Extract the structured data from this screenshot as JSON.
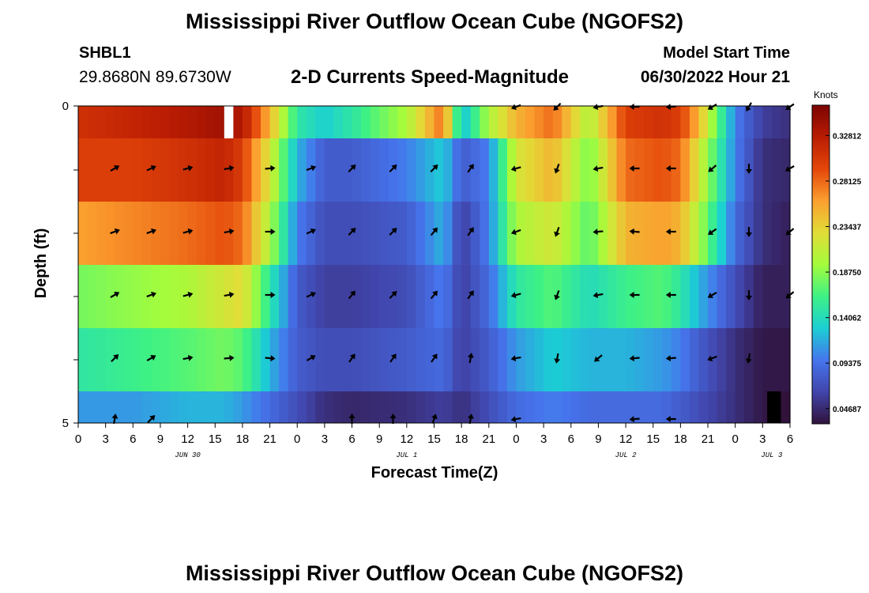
{
  "header": {
    "title": "Mississippi River Outflow Ocean Cube (NGOFS2)",
    "station_name": "SHBL1",
    "station_coords": "29.8680N  89.6730W",
    "plot_title": "2-D Currents Speed-Magnitude",
    "model_start_label": "Model Start Time",
    "model_start_value": "06/30/2022 Hour 21"
  },
  "footer": {
    "title": "Mississippi River Outflow Ocean Cube (NGOFS2)"
  },
  "chart_data": {
    "type": "heatmap",
    "title": "2-D Currents Speed-Magnitude",
    "xlabel": "Forecast Time(Z)",
    "ylabel": "Depth (ft)",
    "x_tick_labels": [
      "0",
      "3",
      "6",
      "9",
      "12",
      "15",
      "18",
      "21",
      "0",
      "3",
      "6",
      "9",
      "12",
      "15",
      "18",
      "21",
      "0",
      "3",
      "6",
      "9",
      "12",
      "15",
      "18",
      "21",
      "0",
      "3",
      "6"
    ],
    "x_range_hours": [
      0,
      78
    ],
    "date_labels": [
      {
        "label": "JUN 30",
        "hour": 12
      },
      {
        "label": "JUL 1",
        "hour": 36
      },
      {
        "label": "JUL 2",
        "hour": 60
      },
      {
        "label": "JUL 3",
        "hour": 76
      }
    ],
    "y_tick_labels": [
      "0",
      "5"
    ],
    "y_range": [
      0,
      5
    ],
    "layers": 6,
    "colorbar": {
      "unit": "Knots",
      "min": 0.03125,
      "max": 0.359375,
      "tick_labels": [
        "0.32812",
        "0.28125",
        "0.23437",
        "0.18750",
        "0.14062",
        "0.09375",
        "0.04687"
      ],
      "tick_values": [
        0.328125,
        0.28125,
        0.234375,
        0.1875,
        0.140625,
        0.09375,
        0.046875
      ]
    },
    "speed_keypoints_hours": [
      0,
      6,
      12,
      16,
      18,
      21,
      24,
      27,
      30,
      36,
      40,
      42,
      45,
      48,
      52,
      56,
      60,
      64,
      66,
      68,
      72,
      75,
      78
    ],
    "layer_speed_profiles": [
      [
        0.31,
        0.32,
        0.33,
        0.34,
        0.33,
        0.25,
        0.15,
        0.13,
        0.15,
        0.2,
        0.28,
        0.12,
        0.2,
        0.25,
        0.28,
        0.2,
        0.3,
        0.31,
        0.3,
        0.25,
        0.1,
        0.06,
        0.05
      ],
      [
        0.3,
        0.3,
        0.31,
        0.32,
        0.3,
        0.22,
        0.12,
        0.08,
        0.08,
        0.1,
        0.13,
        0.08,
        0.1,
        0.22,
        0.25,
        0.18,
        0.28,
        0.29,
        0.28,
        0.22,
        0.1,
        0.05,
        0.045
      ],
      [
        0.26,
        0.27,
        0.28,
        0.29,
        0.28,
        0.2,
        0.1,
        0.07,
        0.07,
        0.08,
        0.12,
        0.06,
        0.1,
        0.2,
        0.22,
        0.17,
        0.25,
        0.26,
        0.25,
        0.2,
        0.09,
        0.05,
        0.04
      ],
      [
        0.18,
        0.19,
        0.2,
        0.22,
        0.23,
        0.15,
        0.08,
        0.06,
        0.06,
        0.07,
        0.1,
        0.06,
        0.09,
        0.15,
        0.17,
        0.14,
        0.16,
        0.17,
        0.15,
        0.12,
        0.07,
        0.04,
        0.04
      ],
      [
        0.15,
        0.16,
        0.17,
        0.18,
        0.17,
        0.12,
        0.08,
        0.07,
        0.07,
        0.08,
        0.09,
        0.06,
        0.08,
        0.11,
        0.13,
        0.12,
        0.12,
        0.11,
        0.1,
        0.08,
        0.05,
        0.035,
        0.035
      ],
      [
        0.11,
        0.11,
        0.12,
        0.12,
        0.11,
        0.09,
        0.07,
        0.05,
        0.045,
        0.05,
        0.06,
        0.05,
        0.07,
        0.09,
        0.1,
        0.09,
        0.09,
        0.09,
        0.08,
        0.07,
        0.05,
        0.035,
        0.03
      ]
    ],
    "missing_cells": [
      {
        "layer": 0,
        "hour_start": 16,
        "hour_end": 17,
        "color": "#ffffff"
      },
      {
        "layer": 5,
        "hour_start": 75.5,
        "hour_end": 77,
        "color": "#000000"
      }
    ],
    "arrow_hours": [
      4,
      8,
      12,
      16.5,
      21,
      25.5,
      30,
      34.5,
      39,
      43,
      48,
      52.5,
      57,
      61,
      65,
      69.5,
      73.5,
      78
    ],
    "arrow_directions_deg": [
      [
        null,
        null,
        null,
        null,
        null,
        null,
        null,
        null,
        null,
        null,
        160,
        135,
        170,
        180,
        175,
        150,
        120,
        145
      ],
      [
        -30,
        -25,
        -15,
        -10,
        -5,
        -20,
        -45,
        -45,
        -45,
        -55,
        165,
        110,
        170,
        180,
        180,
        140,
        90,
        150
      ],
      [
        -20,
        -20,
        -15,
        -10,
        0,
        -25,
        -45,
        -45,
        -50,
        -55,
        160,
        110,
        175,
        185,
        180,
        145,
        90,
        140
      ],
      [
        -30,
        -20,
        -15,
        -10,
        0,
        -25,
        -50,
        -45,
        -50,
        -55,
        165,
        110,
        170,
        180,
        180,
        150,
        90,
        140
      ],
      [
        -45,
        -30,
        -10,
        -5,
        5,
        -30,
        -55,
        -55,
        -55,
        -80,
        170,
        100,
        140,
        175,
        175,
        160,
        100,
        null
      ],
      [
        -80,
        -45,
        null,
        null,
        null,
        null,
        -90,
        -90,
        -70,
        -80,
        170,
        null,
        null,
        175,
        180,
        null,
        null,
        null
      ]
    ]
  }
}
